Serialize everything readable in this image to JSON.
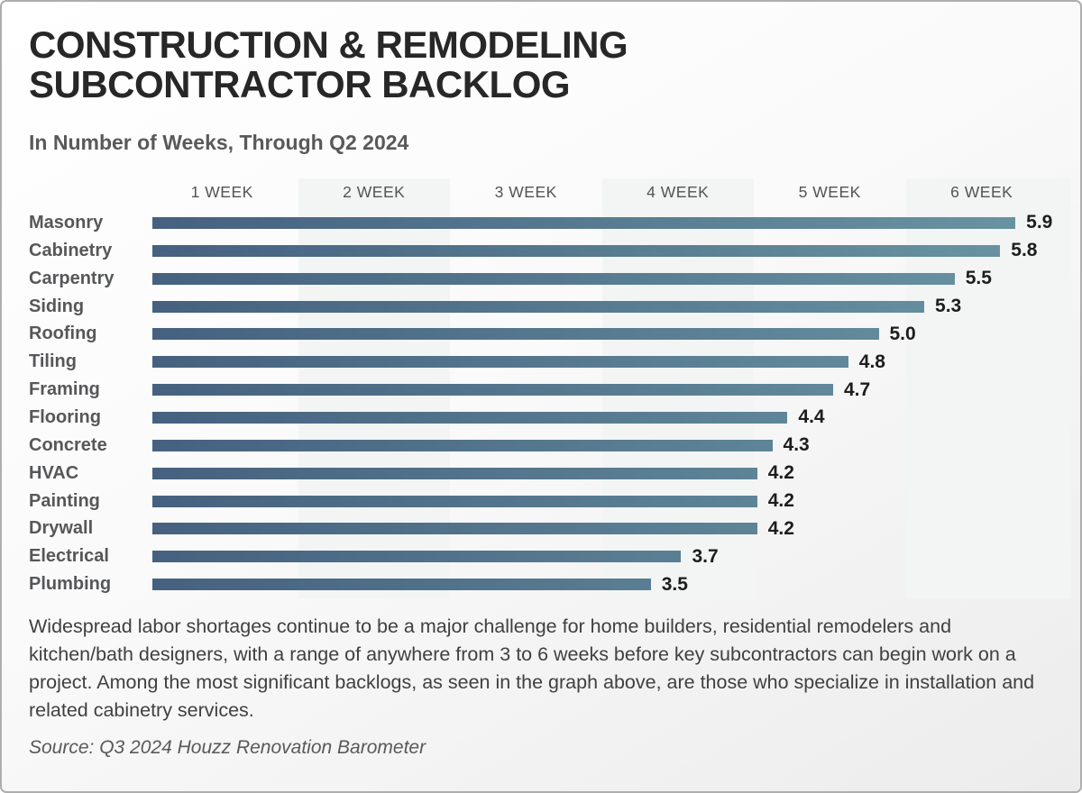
{
  "header": {
    "title_line1": "CONSTRUCTION & REMODELING",
    "title_line2": "SUBCONTRACTOR BACKLOG",
    "subtitle": "In Number of Weeks, Through Q2 2024"
  },
  "chart_data": {
    "type": "bar",
    "orientation": "horizontal",
    "title": "CONSTRUCTION & REMODELING SUBCONTRACTOR BACKLOG",
    "subtitle": "In Number of Weeks, Through Q2 2024",
    "unit": "weeks",
    "xlim": [
      0,
      6
    ],
    "x_tick_labels": [
      "1 WEEK",
      "2 WEEK",
      "3 WEEK",
      "4 WEEK",
      "5 WEEK",
      "6 WEEK"
    ],
    "categories": [
      "Masonry",
      "Cabinetry",
      "Carpentry",
      "Siding",
      "Roofing",
      "Tiling",
      "Framing",
      "Flooring",
      "Concrete",
      "HVAC",
      "Painting",
      "Drywall",
      "Electrical",
      "Plumbing"
    ],
    "values": [
      5.9,
      5.8,
      5.5,
      5.3,
      5.0,
      4.8,
      4.7,
      4.4,
      4.3,
      4.2,
      4.2,
      4.2,
      3.7,
      3.5
    ],
    "grid": "alternating_column_bands",
    "legend": "none",
    "bar_gradient_start": "#45617F",
    "bar_gradient_end": "#6A95A3",
    "band_shade_color": "#F3F5F5"
  },
  "footer": {
    "description": "Widespread labor shortages continue to be a major challenge for home builders, residential remodelers and kitchen/bath designers, with a range of anywhere from 3 to 6 weeks before key subcontractors can begin work on a project. Among the most significant backlogs, as seen in the graph above, are those who specialize in installation and related cabinetry services.",
    "source": "Source: Q3 2024 Houzz Renovation Barometer"
  }
}
